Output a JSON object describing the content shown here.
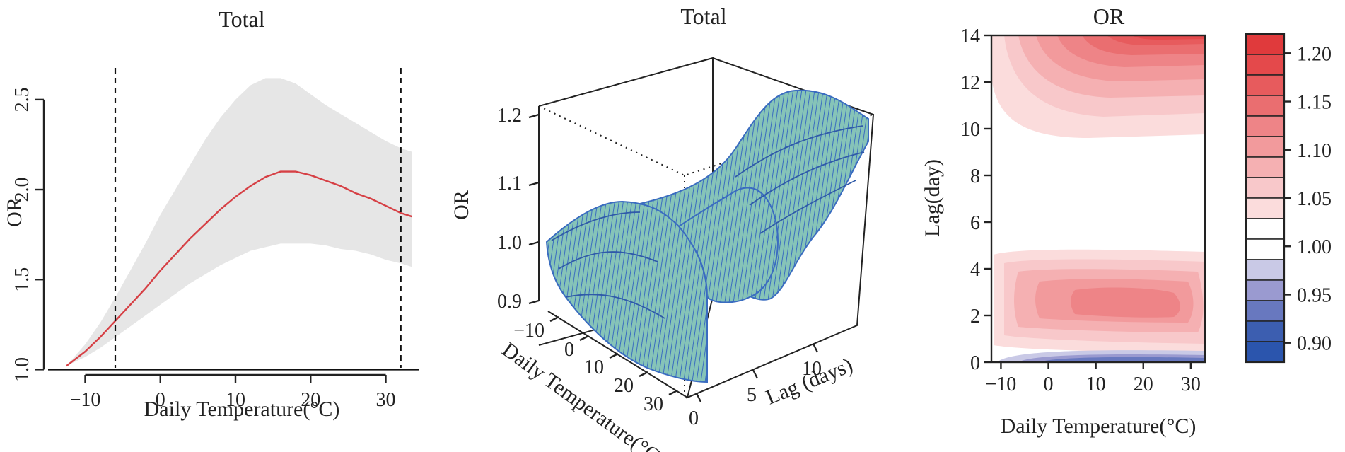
{
  "chart_data": [
    {
      "type": "line",
      "title": "Total",
      "xlabel": "Daily Temperature(°C)",
      "ylabel": "OR",
      "xlim": [
        -14,
        34
      ],
      "ylim": [
        0.97,
        2.7
      ],
      "xticks": [
        -10,
        0,
        10,
        20,
        30
      ],
      "yticks": [
        1.0,
        1.5,
        2.0,
        2.5
      ],
      "yticklabels": [
        "1.0",
        "1.5",
        "2.0",
        "2.5"
      ],
      "reference_y": 1.0,
      "vlines": [
        -6,
        32
      ],
      "series": [
        {
          "x": [
            -12.5,
            -10,
            -8,
            -6,
            -4,
            -2,
            0,
            2,
            4,
            6,
            8,
            10,
            12,
            14,
            16,
            18,
            20,
            22,
            24,
            26,
            28,
            30,
            32,
            33.5
          ],
          "values": [
            1.02,
            1.1,
            1.18,
            1.27,
            1.36,
            1.45,
            1.55,
            1.64,
            1.73,
            1.81,
            1.89,
            1.96,
            2.02,
            2.07,
            2.1,
            2.1,
            2.08,
            2.05,
            2.02,
            1.98,
            1.95,
            1.91,
            1.87,
            1.85
          ],
          "lower": [
            1.02,
            1.07,
            1.12,
            1.18,
            1.24,
            1.3,
            1.36,
            1.42,
            1.48,
            1.53,
            1.58,
            1.62,
            1.66,
            1.68,
            1.7,
            1.7,
            1.7,
            1.69,
            1.67,
            1.66,
            1.64,
            1.61,
            1.59,
            1.57
          ],
          "upper": [
            1.02,
            1.14,
            1.26,
            1.4,
            1.55,
            1.7,
            1.86,
            2.0,
            2.14,
            2.28,
            2.4,
            2.5,
            2.58,
            2.62,
            2.62,
            2.59,
            2.53,
            2.47,
            2.42,
            2.37,
            2.32,
            2.27,
            2.23,
            2.21
          ]
        }
      ],
      "colors": {
        "line": "#d64045",
        "ci": "#e6e6e6"
      }
    },
    {
      "type": "surface",
      "title": "Total",
      "xlabel": "Daily Temperature(°C)",
      "ylabel": "Lag (days)",
      "zlabel": "OR",
      "xticks": [
        -10,
        0,
        10,
        20,
        30
      ],
      "yticks": [
        0,
        5,
        10
      ],
      "zticks": [
        0.9,
        1.0,
        1.1,
        1.2
      ],
      "zticklabels": [
        "0.9",
        "1.0",
        "1.1",
        "1.2"
      ],
      "colors": {
        "fill": "#86c4b8",
        "wire": "#3a6cc0"
      }
    },
    {
      "type": "heatmap",
      "title": "OR",
      "xlabel": "Daily Temperature(°C)",
      "ylabel": "Lag(day)",
      "xlim": [
        -12,
        33
      ],
      "ylim": [
        0,
        14
      ],
      "xticks": [
        -10,
        0,
        10,
        20,
        30
      ],
      "yticks": [
        0,
        2,
        4,
        6,
        8,
        10,
        12,
        14
      ],
      "legend_labels": [
        "1.20",
        "1.15",
        "1.10",
        "1.05",
        "1.00",
        "0.95",
        "0.90"
      ],
      "legend_values": [
        1.2,
        1.15,
        1.1,
        1.05,
        1.0,
        0.95,
        0.9
      ],
      "legend_colors": [
        "#e03a3c",
        "#e4494b",
        "#e75b5d",
        "#ea6e70",
        "#ee8487",
        "#f29a9c",
        "#f5b0b2",
        "#f8c8ca",
        "#fbdcdc",
        "#ffffff",
        "#ffffff",
        "#c9c9e6",
        "#9a9ad0",
        "#6878bf",
        "#3c5eb0",
        "#2b55ad"
      ]
    }
  ]
}
